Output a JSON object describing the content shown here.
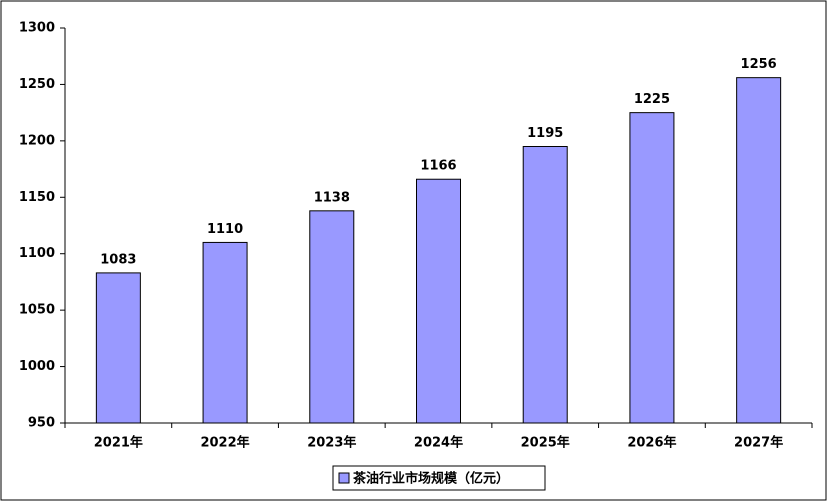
{
  "chart_data": {
    "type": "bar",
    "categories": [
      "2021年",
      "2022年",
      "2023年",
      "2024年",
      "2025年",
      "2026年",
      "2027年"
    ],
    "series": [
      {
        "name": "茶油行业市场规模（亿元）",
        "color": "#9999ff",
        "values": [
          1083,
          1110,
          1138,
          1166,
          1195,
          1225,
          1256
        ]
      }
    ],
    "ylim": [
      950,
      1300
    ],
    "yticks": [
      950,
      1000,
      1050,
      1100,
      1150,
      1200,
      1250,
      1300
    ],
    "legend": "bottom",
    "data_labels": true
  }
}
